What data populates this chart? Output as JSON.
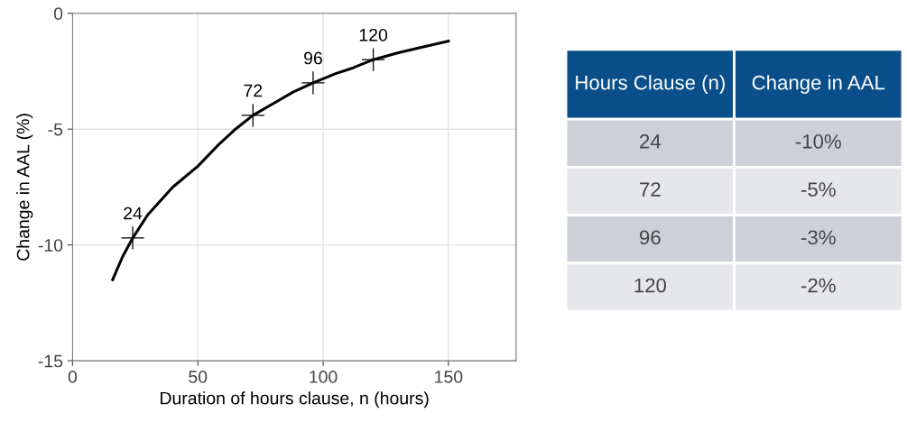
{
  "chart_data": [
    {
      "type": "line",
      "xlabel": "Duration of hours clause, n (hours)",
      "ylabel": "Change in AAL (%)",
      "xlim": [
        0,
        177
      ],
      "xticks": [
        0,
        50,
        100,
        150
      ],
      "ylim": [
        -15,
        0
      ],
      "yticks": [
        -15,
        -10,
        -5,
        0
      ],
      "grid": true,
      "series": [
        {
          "color": "#000000",
          "marker": "none",
          "x": [
            16,
            20,
            24,
            30,
            40,
            50,
            58,
            65,
            72,
            80,
            88,
            96,
            105,
            112,
            120,
            130,
            140,
            150
          ],
          "values": [
            -11.5,
            -10.5,
            -9.7,
            -8.7,
            -7.5,
            -6.6,
            -5.7,
            -5.0,
            -4.4,
            -3.9,
            -3.4,
            -3.0,
            -2.6,
            -2.35,
            -2.0,
            -1.7,
            -1.45,
            -1.2
          ]
        },
        {
          "type": "scatter",
          "color": "#000000",
          "marker": "cross",
          "x": [
            24,
            72,
            96,
            120
          ],
          "values": [
            -9.7,
            -4.4,
            -3.0,
            -2.0
          ]
        }
      ],
      "annotations": [
        {
          "text": "24",
          "x": 24,
          "y": -9.7
        },
        {
          "text": "72",
          "x": 72,
          "y": -4.4
        },
        {
          "text": "96",
          "x": 96,
          "y": -3.0
        },
        {
          "text": "120",
          "x": 120,
          "y": -2.0
        }
      ]
    },
    {
      "type": "other",
      "categories": [
        "Hours Clause (n)",
        "Change in AAL"
      ],
      "cell_labels": [
        [
          "24",
          "-10%"
        ],
        [
          "72",
          "-5%"
        ],
        [
          "96",
          "-3%"
        ],
        [
          "120",
          "-2%"
        ]
      ],
      "colors": [
        "#0b4f8a",
        "#0b4f8a"
      ]
    }
  ]
}
